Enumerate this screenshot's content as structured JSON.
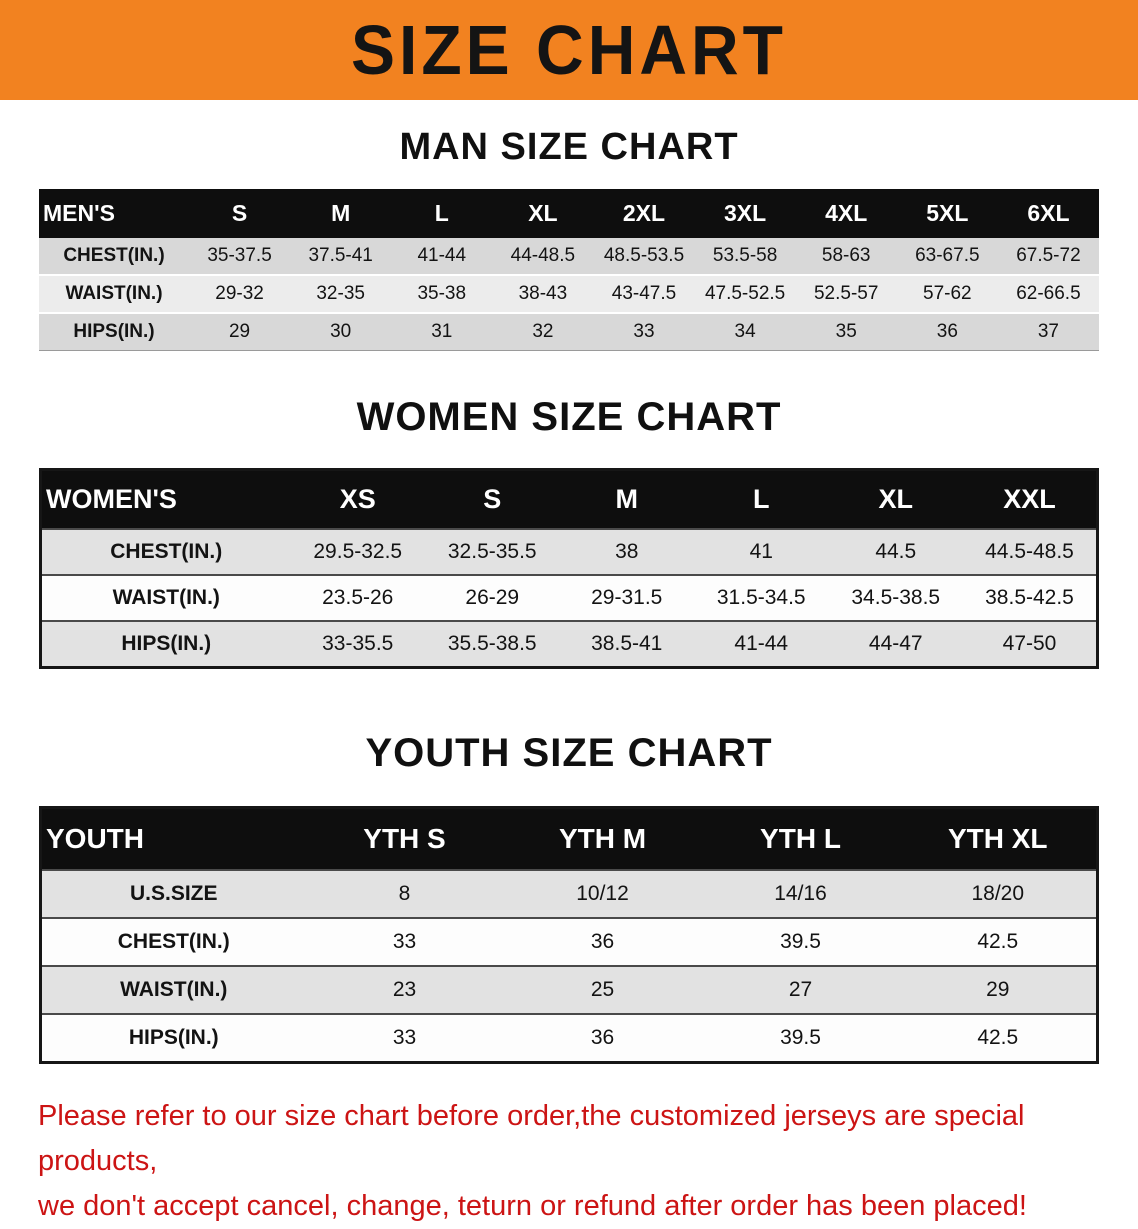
{
  "banner": {
    "title": "SIZE CHART",
    "bg_color": "#F28220",
    "text_color": "#141414"
  },
  "sections": {
    "men": {
      "heading": "MAN SIZE CHART",
      "header": [
        "MEN'S",
        "S",
        "M",
        "L",
        "XL",
        "2XL",
        "3XL",
        "4XL",
        "5XL",
        "6XL"
      ],
      "rows": [
        {
          "label": "CHEST(IN.)",
          "values": [
            "35-37.5",
            "37.5-41",
            "41-44",
            "44-48.5",
            "48.5-53.5",
            "53.5-58",
            "58-63",
            "63-67.5",
            "67.5-72"
          ]
        },
        {
          "label": "WAIST(IN.)",
          "values": [
            "29-32",
            "32-35",
            "35-38",
            "38-43",
            "43-47.5",
            "47.5-52.5",
            "52.5-57",
            "57-62",
            "62-66.5"
          ]
        },
        {
          "label": "HIPS(IN.)",
          "values": [
            "29",
            "30",
            "31",
            "32",
            "33",
            "34",
            "35",
            "36",
            "37"
          ]
        }
      ]
    },
    "women": {
      "heading": "WOMEN SIZE CHART",
      "header": [
        "WOMEN'S",
        "XS",
        "S",
        "M",
        "L",
        "XL",
        "XXL"
      ],
      "rows": [
        {
          "label": "CHEST(IN.)",
          "values": [
            "29.5-32.5",
            "32.5-35.5",
            "38",
            "41",
            "44.5",
            "44.5-48.5"
          ]
        },
        {
          "label": "WAIST(IN.)",
          "values": [
            "23.5-26",
            "26-29",
            "29-31.5",
            "31.5-34.5",
            "34.5-38.5",
            "38.5-42.5"
          ]
        },
        {
          "label": "HIPS(IN.)",
          "values": [
            "33-35.5",
            "35.5-38.5",
            "38.5-41",
            "41-44",
            "44-47",
            "47-50"
          ]
        }
      ]
    },
    "youth": {
      "heading": "YOUTH SIZE CHART",
      "header": [
        "YOUTH",
        "YTH S",
        "YTH M",
        "YTH L",
        "YTH XL"
      ],
      "rows": [
        {
          "label": "U.S.SIZE",
          "values": [
            "8",
            "10/12",
            "14/16",
            "18/20"
          ]
        },
        {
          "label": "CHEST(IN.)",
          "values": [
            "33",
            "36",
            "39.5",
            "42.5"
          ]
        },
        {
          "label": "WAIST(IN.)",
          "values": [
            "23",
            "25",
            "27",
            "29"
          ]
        },
        {
          "label": "HIPS(IN.)",
          "values": [
            "33",
            "36",
            "39.5",
            "42.5"
          ]
        }
      ]
    }
  },
  "disclaimer": {
    "line1": "Please refer to our size chart before order,the customized jerseys are special products,",
    "line2": "we don't accept cancel, change, teturn or refund after order has been placed!",
    "text_color": "#cc1414"
  }
}
